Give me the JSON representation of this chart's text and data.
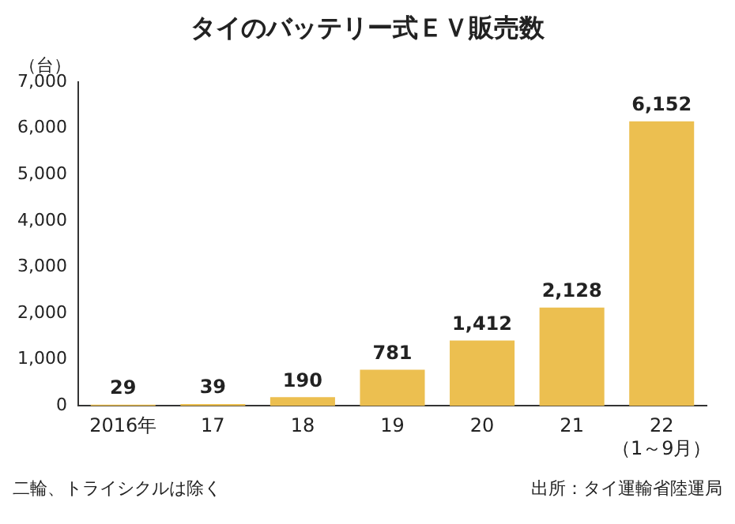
{
  "chart_data": {
    "type": "bar",
    "title": "タイのバッテリー式ＥＶ販売数",
    "ylabel": "（台）",
    "categories": [
      "2016年",
      "17",
      "18",
      "19",
      "20",
      "21",
      "22\n（1～9月）"
    ],
    "values": [
      29,
      39,
      190,
      781,
      1412,
      2128,
      6152
    ],
    "value_labels": [
      "29",
      "39",
      "190",
      "781",
      "1,412",
      "2,128",
      "6,152"
    ],
    "color": "#ecbf50",
    "ylim": [
      0,
      7000
    ],
    "yticks": [
      0,
      {
        "value": 1000,
        "label": "1,000"
      },
      {
        "value": 2000,
        "label": "2,000"
      },
      {
        "value": 3000,
        "label": "3,000"
      },
      {
        "value": 4000,
        "label": "4,000"
      },
      {
        "value": 5000,
        "label": "5,000"
      },
      {
        "value": 6000,
        "label": "6,000"
      },
      {
        "value": 7000,
        "label": "7,000"
      }
    ],
    "grid": false,
    "legend": false,
    "annotations": [
      "二輪、トライシクルは除く",
      "出所：タイ運輸省陸運局"
    ]
  }
}
